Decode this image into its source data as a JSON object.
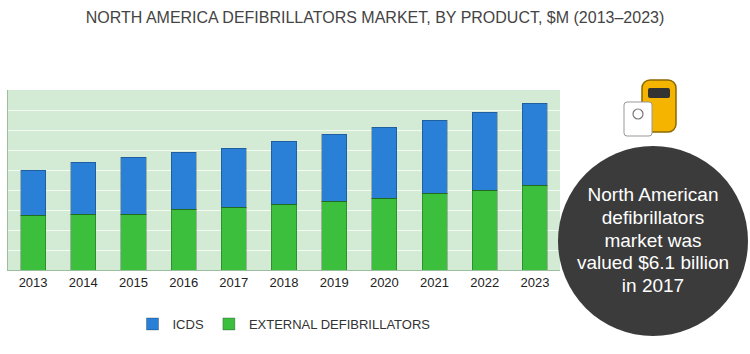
{
  "chart_data": {
    "type": "bar",
    "title": "NORTH AMERICA DEFIBRILLATORS MARKET, BY PRODUCT, $M (2013–2023)",
    "categories": [
      "2013",
      "2014",
      "2015",
      "2016",
      "2017",
      "2018",
      "2019",
      "2020",
      "2021",
      "2022",
      "2023"
    ],
    "series": [
      {
        "name": "EXTERNAL DEFIBRILLATORS",
        "color": "#3cbf3c",
        "values": [
          2750,
          2800,
          2800,
          3050,
          3150,
          3300,
          3450,
          3600,
          3850,
          4000,
          4250
        ]
      },
      {
        "name": "ICDS",
        "color": "#2a7fd6",
        "values": [
          2250,
          2600,
          2850,
          2850,
          2950,
          3150,
          3350,
          3550,
          3650,
          3900,
          4100
        ]
      }
    ],
    "stacked": true,
    "ylim": [
      0,
      9000
    ],
    "yticks": [
      0,
      1000,
      2000,
      3000,
      4000,
      5000,
      6000,
      7000,
      8000,
      9000
    ],
    "grid": true,
    "tick_labels": "x",
    "legend": "bottom",
    "annotations": [
      "North American defibrillators market was valued $6.1 billion in 2017"
    ]
  }
}
